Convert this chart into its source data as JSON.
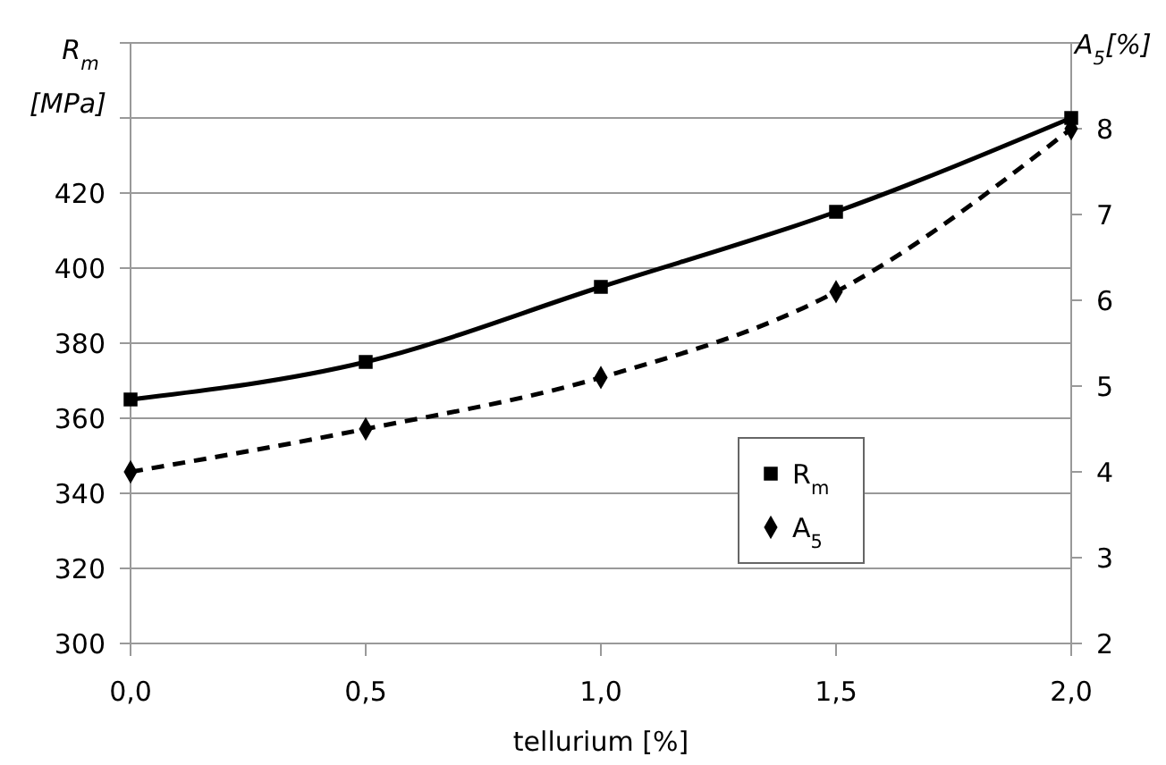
{
  "chart_data": {
    "type": "line",
    "xlabel": "tellurium [%]",
    "ylabel": "R$_{m}$\n[MPa]",
    "y2label": "A$_{5}$[%]",
    "x": [
      0,
      0.5,
      1,
      1.5,
      2
    ],
    "xlim": [
      0,
      2
    ],
    "xticks": [
      {
        "value": 0,
        "label": "0,0"
      },
      {
        "value": 0.5,
        "label": "0,5"
      },
      {
        "value": 1,
        "label": "1,0"
      },
      {
        "value": 1.5,
        "label": "1,5"
      },
      {
        "value": 2,
        "label": "2,0"
      }
    ],
    "ylim": [
      300,
      460
    ],
    "yticks": [
      300,
      320,
      340,
      360,
      380,
      400,
      420,
      {
        "value": 440,
        "label": null
      },
      {
        "value": 460,
        "label": null
      }
    ],
    "y2lim": [
      2,
      9
    ],
    "y2ticks": [
      2,
      3,
      4,
      5,
      6,
      7,
      8,
      {
        "value": 9,
        "label": null
      }
    ],
    "grid": "y",
    "legend": "bottom right",
    "series": [
      {
        "name": "R$_{m}$",
        "color": "#000000",
        "values": [
          365,
          375,
          395,
          415,
          440
        ],
        "marker": "square",
        "line_style": "solid"
      },
      {
        "name": "A$_{5}$",
        "color": "#000000",
        "values": [
          4,
          4.5,
          5.1,
          6.1,
          8
        ],
        "marker": "diamond",
        "line_style": "dashed",
        "axis": "y2"
      }
    ]
  }
}
